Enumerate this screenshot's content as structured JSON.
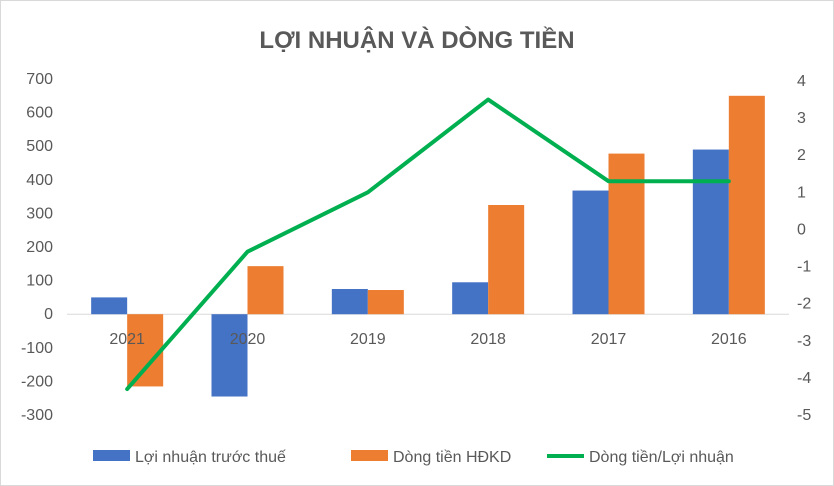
{
  "chart_data": {
    "type": "bar",
    "title": "LỢI NHUẬN VÀ DÒNG TIỀN",
    "categories": [
      "2021",
      "2020",
      "2019",
      "2018",
      "2017",
      "2016"
    ],
    "series": [
      {
        "name": "Lợi nhuận trước thuế",
        "type": "bar",
        "axis": "left",
        "color": "#4472c4",
        "values": [
          50,
          -245,
          75,
          95,
          368,
          490
        ]
      },
      {
        "name": "Dòng tiền HĐKD",
        "type": "bar",
        "axis": "left",
        "color": "#ed7d31",
        "values": [
          -215,
          143,
          72,
          325,
          478,
          650
        ]
      },
      {
        "name": "Dòng tiền/Lợi nhuận",
        "type": "line",
        "axis": "right",
        "color": "#00b050",
        "values": [
          -4.3,
          -0.6,
          1.0,
          3.5,
          1.3,
          1.3
        ]
      }
    ],
    "left_axis": {
      "min": -300,
      "max": 700,
      "step": 100,
      "tick_labels": [
        "-300",
        "-200",
        "-100",
        "0",
        "100",
        "200",
        "300",
        "400",
        "500",
        "600",
        "700"
      ]
    },
    "right_axis": {
      "min": -5,
      "max": 4,
      "step": 1,
      "tick_labels": [
        "-5",
        "-4",
        "-3",
        "-2",
        "-1",
        "0",
        "1",
        "2",
        "3",
        "4"
      ]
    },
    "grid": false,
    "legend_position": "bottom"
  }
}
